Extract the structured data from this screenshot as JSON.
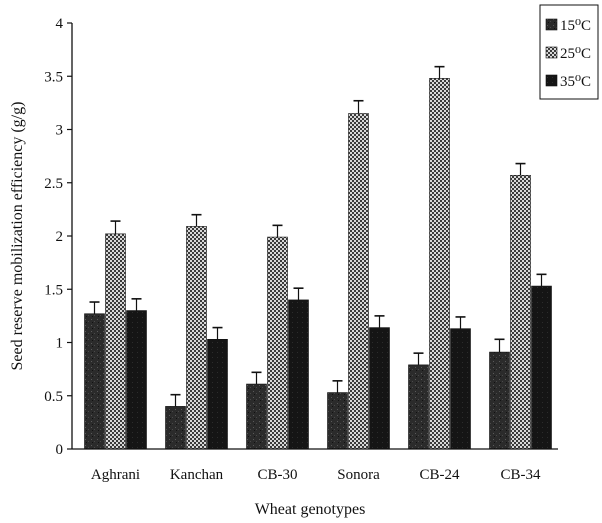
{
  "chart_data": {
    "type": "bar",
    "xlabel": "Wheat genotypes",
    "ylabel": "Seed reserve mobilization efficiency (g/g)",
    "categories": [
      "Aghrani",
      "Kanchan",
      "CB-30",
      "Sonora",
      "CB-24",
      "CB-34"
    ],
    "ylim": [
      0,
      4
    ],
    "yticks": [
      "0",
      "0.5",
      "1",
      "1.5",
      "2",
      "2.5",
      "3",
      "3.5",
      "4"
    ],
    "grid": false,
    "legend_position": "top-right",
    "series": [
      {
        "name": "15⁰C",
        "values": [
          1.27,
          0.4,
          0.61,
          0.53,
          0.79,
          0.91
        ],
        "errors": [
          0.11,
          0.11,
          0.11,
          0.11,
          0.11,
          0.12
        ],
        "pattern": "dark-speckled",
        "color": "#2a2a2a"
      },
      {
        "name": "25⁰C",
        "values": [
          2.02,
          2.09,
          1.99,
          3.15,
          3.48,
          2.57
        ],
        "errors": [
          0.12,
          0.11,
          0.11,
          0.12,
          0.11,
          0.11
        ],
        "pattern": "checkered",
        "color": "#9a9a9a"
      },
      {
        "name": "35⁰C",
        "values": [
          1.3,
          1.03,
          1.4,
          1.14,
          1.13,
          1.53
        ],
        "errors": [
          0.11,
          0.11,
          0.11,
          0.11,
          0.11,
          0.11
        ],
        "pattern": "solid",
        "color": "#141414"
      }
    ]
  }
}
